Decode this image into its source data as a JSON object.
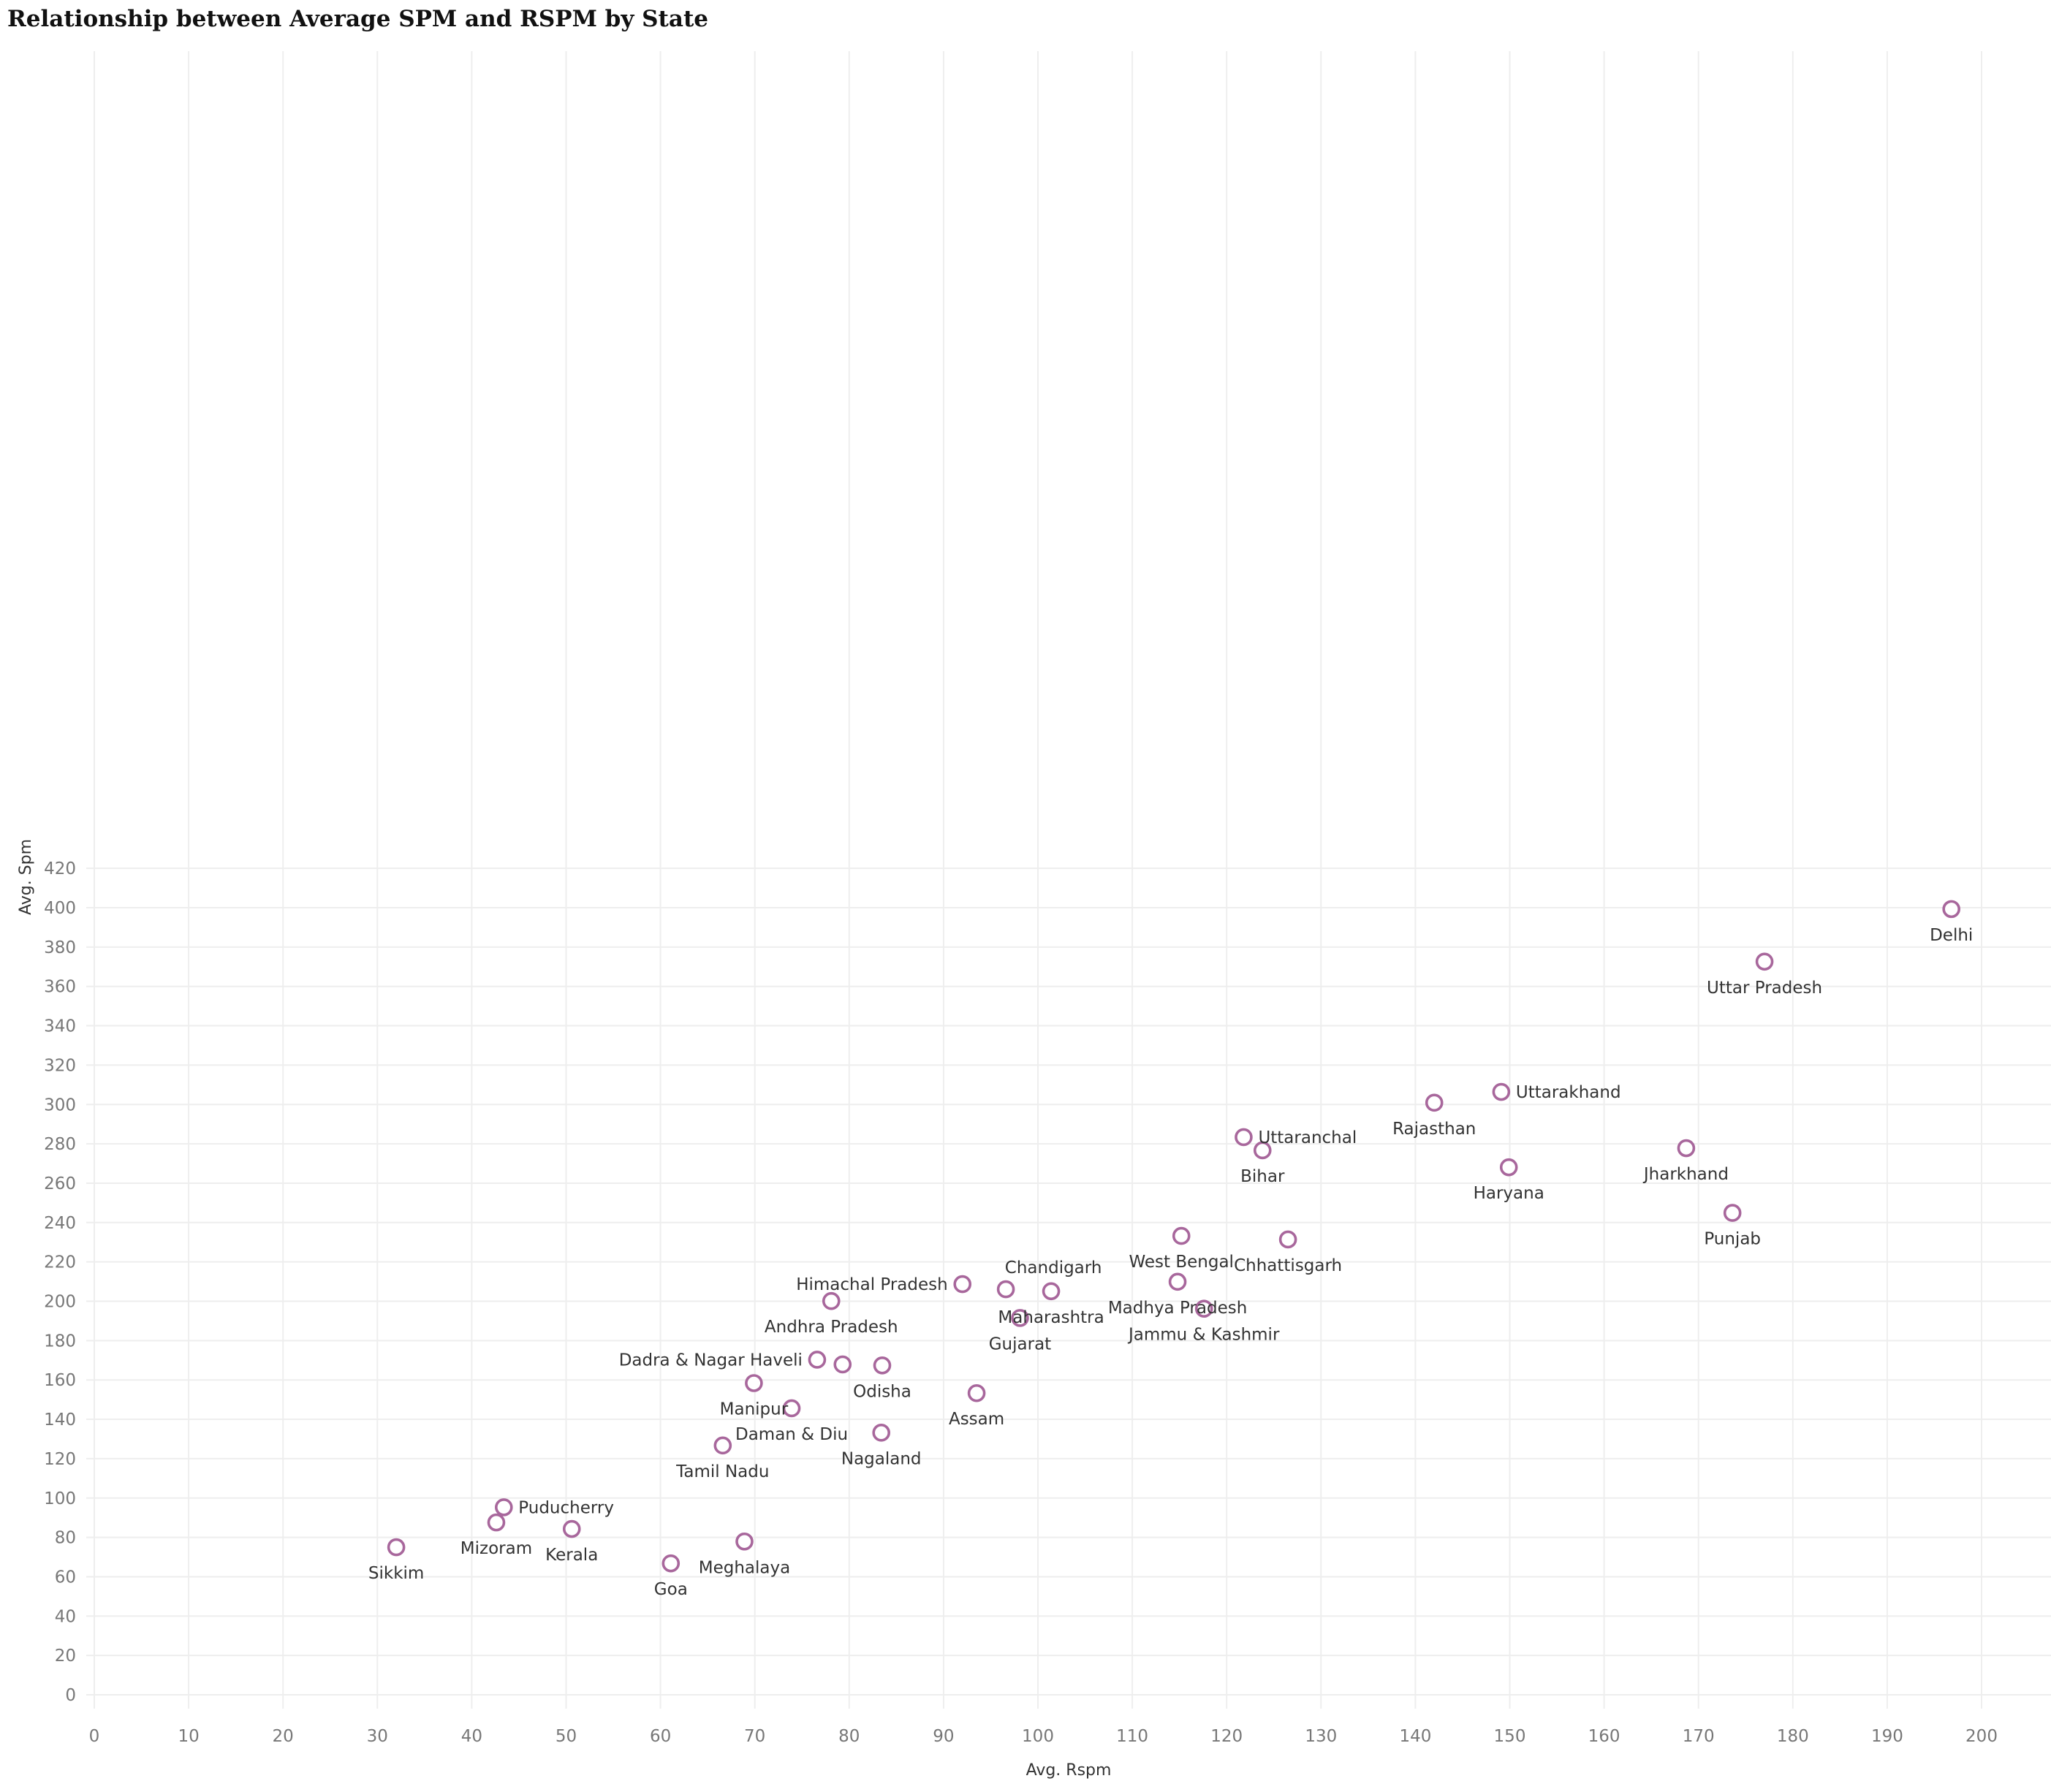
{
  "chart_data": {
    "type": "scatter",
    "title": "Relationship between Average SPM and RSPM by State",
    "xlabel": "Avg. Rspm",
    "ylabel": "Avg. Spm",
    "xlim": [
      0,
      200
    ],
    "ylim": [
      0,
      420
    ],
    "xticks": [
      0,
      10,
      20,
      30,
      40,
      50,
      60,
      70,
      80,
      90,
      100,
      110,
      120,
      130,
      140,
      150,
      160,
      170,
      180,
      190,
      200
    ],
    "yticks": [
      0,
      20,
      40,
      60,
      80,
      100,
      120,
      140,
      160,
      180,
      200,
      220,
      240,
      260,
      280,
      300,
      320,
      340,
      360,
      380,
      400,
      420
    ],
    "grid": true,
    "marker": "hollow-circle",
    "marker_color": "#a8679c",
    "points": [
      {
        "label": "Delhi",
        "x": 196.8,
        "y": 399.3,
        "label_pos": "below"
      },
      {
        "label": "Uttar Pradesh",
        "x": 177.0,
        "y": 372.6,
        "label_pos": "below"
      },
      {
        "label": "Uttarakhand",
        "x": 149.1,
        "y": 306.4,
        "label_pos": "right"
      },
      {
        "label": "Rajasthan",
        "x": 142.0,
        "y": 300.9,
        "label_pos": "below"
      },
      {
        "label": "Uttaranchal",
        "x": 121.8,
        "y": 283.4,
        "label_pos": "right"
      },
      {
        "label": "Bihar",
        "x": 123.8,
        "y": 276.7,
        "label_pos": "below"
      },
      {
        "label": "Jharkhand",
        "x": 168.7,
        "y": 277.8,
        "label_pos": "below"
      },
      {
        "label": "Haryana",
        "x": 149.9,
        "y": 268.1,
        "label_pos": "below"
      },
      {
        "label": "Punjab",
        "x": 173.6,
        "y": 244.9,
        "label_pos": "below"
      },
      {
        "label": "West Bengal",
        "x": 115.2,
        "y": 233.2,
        "label_pos": "below"
      },
      {
        "label": "Chhattisgarh",
        "x": 126.5,
        "y": 231.4,
        "label_pos": "below"
      },
      {
        "label": "Madhya Pradesh",
        "x": 114.8,
        "y": 209.9,
        "label_pos": "below"
      },
      {
        "label": "Himachal Pradesh",
        "x": 92.0,
        "y": 208.7,
        "label_pos": "left"
      },
      {
        "label": "Chandigarh",
        "x": 96.6,
        "y": 206.1,
        "label_pos": "above"
      },
      {
        "label": "Maharashtra",
        "x": 101.4,
        "y": 205.1,
        "label_pos": "below"
      },
      {
        "label": "Andhra Pradesh",
        "x": 78.1,
        "y": 200.1,
        "label_pos": "below"
      },
      {
        "label": "Jammu & Kashmir",
        "x": 117.6,
        "y": 196.2,
        "label_pos": "below"
      },
      {
        "label": "Gujarat",
        "x": 98.1,
        "y": 191.5,
        "label_pos": "below"
      },
      {
        "label": "Dadra & Nagar Haveli",
        "x": 76.6,
        "y": 170.3,
        "label_pos": "left"
      },
      {
        "label": "",
        "x": 79.3,
        "y": 167.9,
        "label_pos": "none"
      },
      {
        "label": "Odisha",
        "x": 83.5,
        "y": 167.4,
        "label_pos": "below"
      },
      {
        "label": "Manipur",
        "x": 69.9,
        "y": 158.4,
        "label_pos": "below"
      },
      {
        "label": "Assam",
        "x": 93.5,
        "y": 153.3,
        "label_pos": "below"
      },
      {
        "label": "Daman & Diu",
        "x": 73.9,
        "y": 145.6,
        "label_pos": "below"
      },
      {
        "label": "Nagaland",
        "x": 83.4,
        "y": 133.2,
        "label_pos": "below"
      },
      {
        "label": "Tamil Nadu",
        "x": 66.6,
        "y": 126.7,
        "label_pos": "below"
      },
      {
        "label": "Puducherry",
        "x": 43.4,
        "y": 95.3,
        "label_pos": "right"
      },
      {
        "label": "Mizoram",
        "x": 42.6,
        "y": 87.6,
        "label_pos": "below"
      },
      {
        "label": "Kerala",
        "x": 50.6,
        "y": 84.3,
        "label_pos": "below"
      },
      {
        "label": "Meghalaya",
        "x": 68.9,
        "y": 77.9,
        "label_pos": "below"
      },
      {
        "label": "Sikkim",
        "x": 32.0,
        "y": 75.0,
        "label_pos": "below"
      },
      {
        "label": "Goa",
        "x": 61.1,
        "y": 66.8,
        "label_pos": "below"
      }
    ]
  }
}
